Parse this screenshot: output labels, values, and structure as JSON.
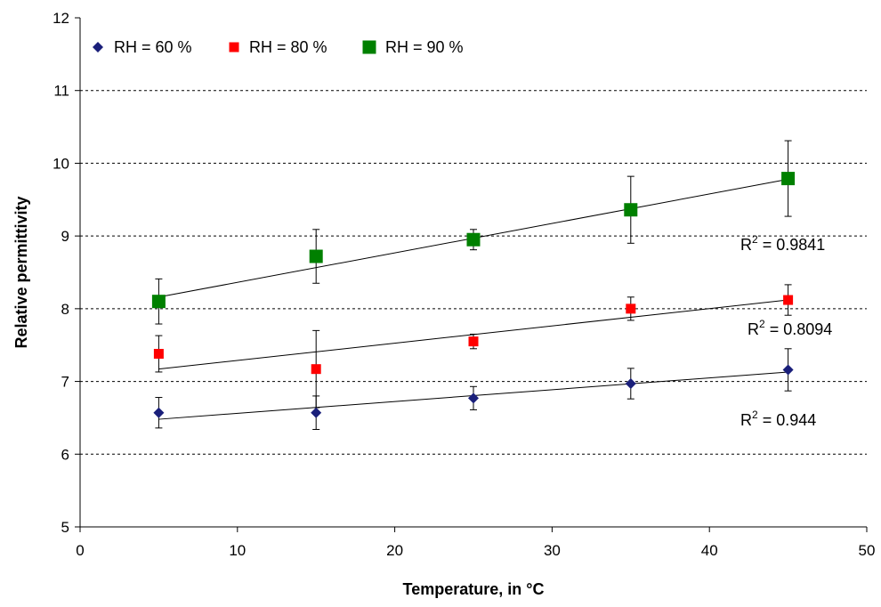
{
  "chart_data": {
    "type": "scatter",
    "xlabel": "Temperature, in °C",
    "ylabel": "Relative permittivity",
    "xlim": [
      0,
      50
    ],
    "ylim": [
      5,
      12
    ],
    "xticks": [
      0,
      10,
      20,
      30,
      40,
      50
    ],
    "yticks": [
      5,
      6,
      7,
      8,
      9,
      10,
      11,
      12
    ],
    "grid": "horizontal dashed",
    "legend_position": "top-left",
    "series": [
      {
        "name": "RH = 60 %",
        "marker": "diamond",
        "color": "#1a1f7a",
        "x": [
          5,
          15,
          25,
          35,
          45
        ],
        "y": [
          6.57,
          6.57,
          6.77,
          6.97,
          7.16
        ],
        "err": [
          0.21,
          0.23,
          0.16,
          0.21,
          0.29
        ],
        "trend": {
          "start": [
            5,
            6.48
          ],
          "end": [
            45,
            7.13
          ]
        },
        "r2_label": {
          "prefix": "R",
          "sup": "2",
          "value": " = 0.944"
        }
      },
      {
        "name": "RH = 80 %",
        "marker": "square",
        "color": "#ff0000",
        "x": [
          5,
          15,
          25,
          35,
          45
        ],
        "y": [
          7.38,
          7.17,
          7.55,
          8.0,
          8.12
        ],
        "err": [
          0.25,
          0.53,
          0.1,
          0.16,
          0.21
        ],
        "trend": {
          "start": [
            5,
            7.17
          ],
          "end": [
            45,
            8.12
          ]
        },
        "r2_label": {
          "prefix": "R",
          "sup": "2",
          "value": " = 0.8094"
        }
      },
      {
        "name": "RH = 90 %",
        "marker": "square-large",
        "color": "#008000",
        "x": [
          5,
          15,
          25,
          35,
          45
        ],
        "y": [
          8.1,
          8.72,
          8.95,
          9.36,
          9.79
        ],
        "err": [
          0.31,
          0.37,
          0.14,
          0.46,
          0.52
        ],
        "trend": {
          "start": [
            5,
            8.16
          ],
          "end": [
            45,
            9.78
          ]
        },
        "r2_label": {
          "prefix": "R",
          "sup": "2",
          "value": " = 0.9841"
        }
      }
    ]
  }
}
